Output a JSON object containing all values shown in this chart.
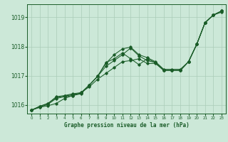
{
  "title": "Graphe pression niveau de la mer (hPa)",
  "background_color": "#cce8d8",
  "grid_color": "#aaccb8",
  "line_color": "#1a5c28",
  "xlim": [
    -0.5,
    23.5
  ],
  "ylim": [
    1015.7,
    1019.45
  ],
  "yticks": [
    1016,
    1017,
    1018,
    1019
  ],
  "xticks": [
    0,
    1,
    2,
    3,
    4,
    5,
    6,
    7,
    8,
    9,
    10,
    11,
    12,
    13,
    14,
    15,
    16,
    17,
    18,
    19,
    20,
    21,
    22,
    23
  ],
  "series": [
    [
      1015.82,
      1015.92,
      1015.97,
      1016.05,
      1016.22,
      1016.32,
      1016.42,
      1016.62,
      1016.88,
      1017.08,
      1017.28,
      1017.48,
      1017.52,
      1017.58,
      1017.42,
      1017.42,
      1017.18,
      1017.18,
      1017.18,
      1017.48,
      1018.08,
      1018.82,
      1019.08,
      1019.18
    ],
    [
      1015.82,
      1015.92,
      1016.02,
      1016.22,
      1016.28,
      1016.32,
      1016.38,
      1016.68,
      1016.98,
      1017.42,
      1017.72,
      1017.92,
      1017.98,
      1017.72,
      1017.62,
      1017.48,
      1017.22,
      1017.22,
      1017.22,
      1017.48,
      1018.08,
      1018.82,
      1019.08,
      1019.22
    ],
    [
      1015.82,
      1015.95,
      1016.05,
      1016.25,
      1016.3,
      1016.35,
      1016.4,
      1016.68,
      1016.98,
      1017.32,
      1017.52,
      1017.72,
      1017.95,
      1017.68,
      1017.52,
      1017.45,
      1017.18,
      1017.18,
      1017.18,
      1017.48,
      1018.08,
      1018.82,
      1019.08,
      1019.22
    ],
    [
      1015.82,
      1015.95,
      1016.05,
      1016.28,
      1016.32,
      1016.38,
      1016.42,
      1016.68,
      1016.98,
      1017.45,
      1017.58,
      1017.78,
      1017.58,
      1017.38,
      1017.58,
      1017.45,
      1017.18,
      1017.18,
      1017.18,
      1017.48,
      1018.08,
      1018.82,
      1019.08,
      1019.22
    ]
  ]
}
